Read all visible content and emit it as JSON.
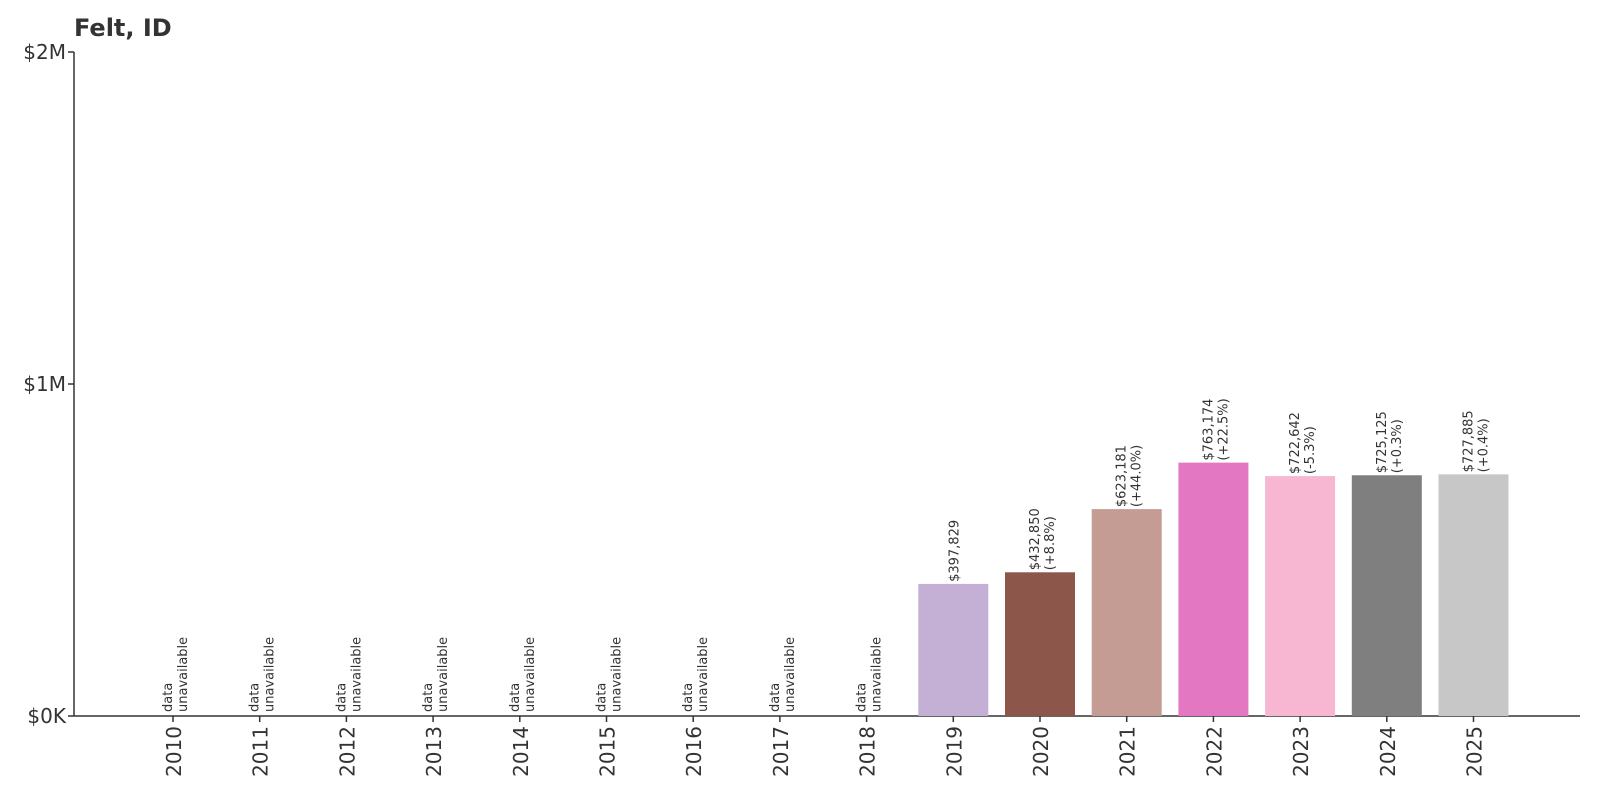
{
  "chart_data": {
    "type": "bar",
    "title": "Felt, ID",
    "xlabel": "",
    "ylabel": "",
    "ylim": [
      0,
      2000000
    ],
    "yticks": [
      {
        "value": 0,
        "label": "$0K"
      },
      {
        "value": 1000000,
        "label": "$1M"
      },
      {
        "value": 2000000,
        "label": "$2M"
      }
    ],
    "categories": [
      "2010",
      "2011",
      "2012",
      "2013",
      "2014",
      "2015",
      "2016",
      "2017",
      "2018",
      "2019",
      "2020",
      "2021",
      "2022",
      "2023",
      "2024",
      "2025"
    ],
    "values": [
      null,
      null,
      null,
      null,
      null,
      null,
      null,
      null,
      null,
      397829,
      432850,
      623181,
      763174,
      722642,
      725125,
      727885
    ],
    "value_labels": [
      "",
      "",
      "",
      "",
      "",
      "",
      "",
      "",
      "",
      "$397,829",
      "$432,850",
      "$623,181",
      "$763,174",
      "$722,642",
      "$725,125",
      "$727,885"
    ],
    "change_labels": [
      "",
      "",
      "",
      "",
      "",
      "",
      "",
      "",
      "",
      "",
      "(+8.8%)",
      "(+44.0%)",
      "(+22.5%)",
      "(-5.3%)",
      "(+0.3%)",
      "(+0.4%)"
    ],
    "unavailable_label": [
      "data",
      "unavailable"
    ],
    "colors": [
      "#c5b0d5",
      "#c5b0d5",
      "#c5b0d5",
      "#c5b0d5",
      "#c5b0d5",
      "#c5b0d5",
      "#c5b0d5",
      "#c5b0d5",
      "#c5b0d5",
      "#c5b0d5",
      "#8c564b",
      "#c49c94",
      "#e377c2",
      "#f7b6d2",
      "#7f7f7f",
      "#c7c7c7"
    ],
    "grid": false,
    "legend": "none"
  }
}
